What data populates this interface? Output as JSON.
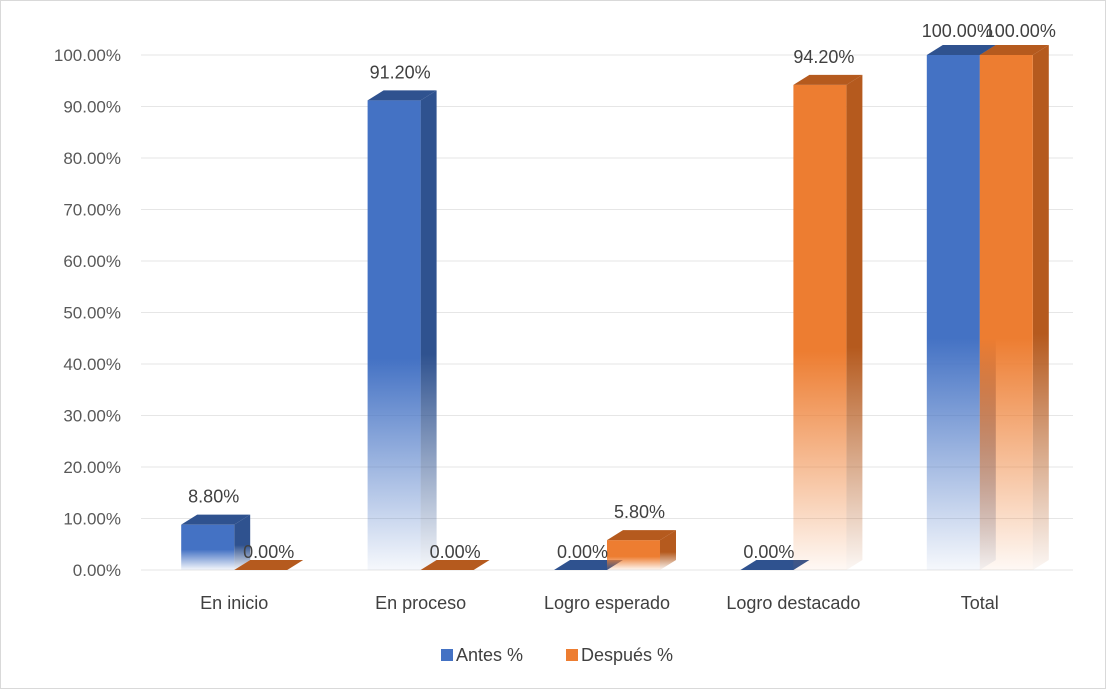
{
  "chart_data": {
    "type": "bar",
    "style": "3d-clustered-column",
    "categories": [
      "En inicio",
      "En proceso",
      "Logro esperado",
      "Logro destacado",
      "Total"
    ],
    "series": [
      {
        "name": "Antes %",
        "values": [
          8.8,
          91.2,
          0.0,
          0.0,
          100.0
        ],
        "labels": [
          "8.80%",
          "91.20%",
          "0.00%",
          "0.00%",
          "100.00%"
        ],
        "color": "#4472C4",
        "side_color": "#2F528F"
      },
      {
        "name": "Después %",
        "values": [
          0.0,
          0.0,
          5.8,
          94.2,
          100.0
        ],
        "labels": [
          "0.00%",
          "0.00%",
          "5.80%",
          "94.20%",
          "100.00%"
        ],
        "color": "#ED7D31",
        "side_color": "#B55A1E"
      }
    ],
    "y_ticks": [
      "0.00%",
      "10.00%",
      "20.00%",
      "30.00%",
      "40.00%",
      "50.00%",
      "60.00%",
      "70.00%",
      "80.00%",
      "90.00%",
      "100.00%"
    ],
    "ylim": [
      0,
      100
    ],
    "grid": true,
    "legend_position": "bottom",
    "gridline_color": "#e6e6e6"
  }
}
